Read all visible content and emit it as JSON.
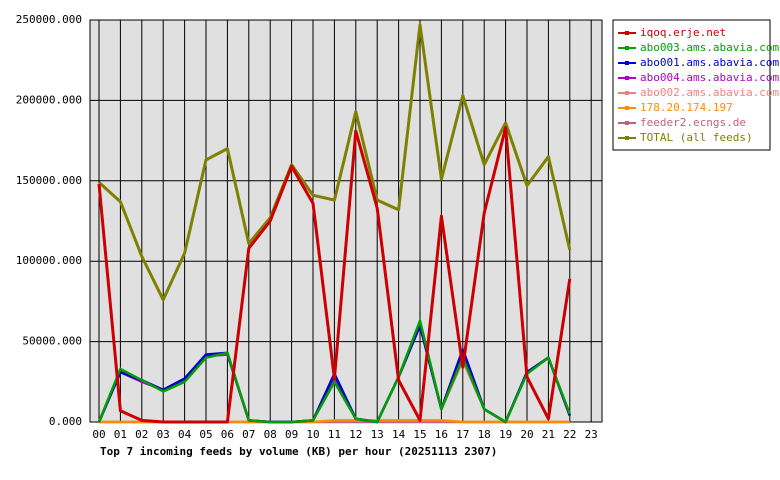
{
  "chart_data": {
    "type": "line",
    "x_label": "Top 7 incoming feeds by volume (KB) per hour (20251113 2307)",
    "categories": [
      "00",
      "01",
      "02",
      "03",
      "04",
      "05",
      "06",
      "07",
      "08",
      "09",
      "10",
      "11",
      "12",
      "13",
      "14",
      "15",
      "16",
      "17",
      "18",
      "19",
      "20",
      "21",
      "22",
      "23"
    ],
    "ylim": [
      0,
      250000
    ],
    "yticks": [
      {
        "value": 0,
        "label": "0.000"
      },
      {
        "value": 50000,
        "label": "50000.000"
      },
      {
        "value": 100000,
        "label": "100000.000"
      },
      {
        "value": 150000,
        "label": "150000.000"
      },
      {
        "value": 200000,
        "label": "200000.000"
      },
      {
        "value": 250000,
        "label": "250000.000"
      }
    ],
    "grid": true,
    "legend": "right",
    "series": [
      {
        "name": "iqoq.erje.net",
        "color": "#cc0000",
        "values": [
          148000,
          7000,
          1000,
          0,
          0,
          0,
          0,
          108000,
          125000,
          159000,
          136000,
          27000,
          181000,
          133000,
          26000,
          1000,
          128000,
          34000,
          130000,
          183000,
          28000,
          2000,
          89000,
          null
        ]
      },
      {
        "name": "abo003.ams.abavia.com",
        "color": "#00a000",
        "values": [
          0,
          33000,
          26000,
          19000,
          25000,
          40000,
          43000,
          1000,
          0,
          0,
          1000,
          25000,
          2000,
          0,
          28000,
          63000,
          8000,
          40000,
          8000,
          0,
          30000,
          40000,
          5000,
          null
        ]
      },
      {
        "name": "abo001.ams.abavia.com",
        "color": "#0000cc",
        "values": [
          0,
          31000,
          26000,
          20000,
          27000,
          42000,
          43000,
          1000,
          0,
          0,
          1000,
          30000,
          2000,
          0,
          28000,
          60000,
          8000,
          45000,
          8000,
          0,
          31000,
          40000,
          4000,
          null
        ]
      },
      {
        "name": "abo004.ams.abavia.com",
        "color": "#b000c8",
        "values": [
          0,
          31000,
          25000,
          20000,
          27000,
          41000,
          42000,
          1000,
          0,
          0,
          1000,
          28000,
          2000,
          0,
          28000,
          60000,
          8000,
          45000,
          8000,
          0,
          31000,
          40000,
          4000,
          null
        ]
      },
      {
        "name": "abo002.ams.abavia.com",
        "color": "#f08080",
        "values": [
          0,
          32000,
          26000,
          20000,
          26000,
          41000,
          42000,
          1000,
          0,
          0,
          1000,
          25000,
          2000,
          0,
          28000,
          60000,
          8000,
          38000,
          8000,
          0,
          31000,
          40000,
          4000,
          null
        ]
      },
      {
        "name": "178.20.174.197",
        "color": "#ff8c00",
        "values": [
          0,
          0,
          0,
          0,
          0,
          0,
          0,
          0,
          0,
          0,
          0,
          1000,
          1000,
          1000,
          1000,
          1000,
          1000,
          0,
          0,
          0,
          0,
          0,
          0,
          null
        ]
      },
      {
        "name": "feeder2.ecngs.de",
        "color": "#c06080",
        "values": [
          0,
          0,
          0,
          0,
          0,
          0,
          0,
          0,
          0,
          0,
          0,
          0,
          0,
          0,
          0,
          0,
          0,
          0,
          0,
          0,
          0,
          0,
          0,
          null
        ]
      },
      {
        "name": "TOTAL (all feeds)",
        "color": "#808000",
        "values": [
          149000,
          137000,
          103000,
          76000,
          105000,
          163000,
          170000,
          111000,
          127000,
          160000,
          141000,
          138000,
          193000,
          138000,
          132000,
          247000,
          151000,
          203000,
          160000,
          186000,
          147000,
          165000,
          107000,
          null
        ]
      }
    ]
  }
}
